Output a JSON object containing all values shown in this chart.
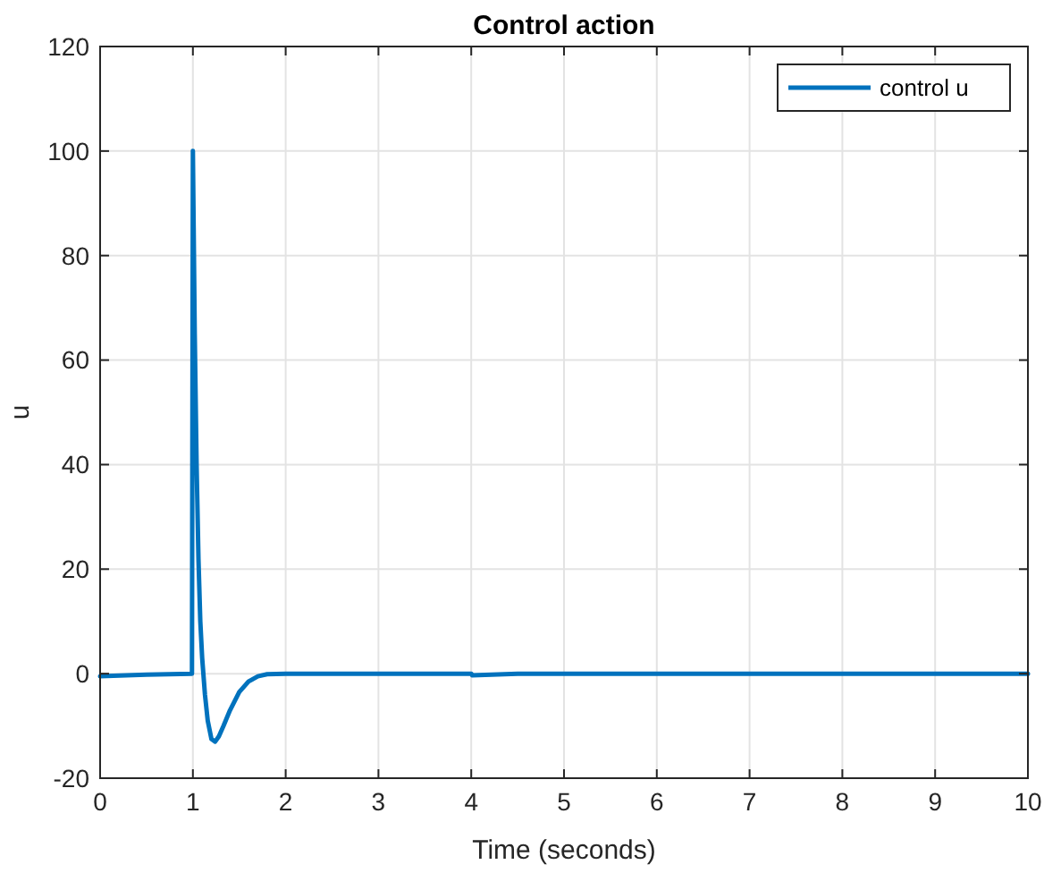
{
  "chart_data": {
    "type": "line",
    "title": "Control action",
    "xlabel": "Time (seconds)",
    "ylabel": "u",
    "xlim": [
      0,
      10
    ],
    "ylim": [
      -20,
      120
    ],
    "xticks": [
      0,
      1,
      2,
      3,
      4,
      5,
      6,
      7,
      8,
      9,
      10
    ],
    "yticks": [
      -20,
      0,
      20,
      40,
      60,
      80,
      100,
      120
    ],
    "grid": true,
    "legend": "top right",
    "marker": "none",
    "line_style": "solid",
    "series": [
      {
        "name": "control u",
        "color": "#0072bd",
        "x": [
          0,
          0.5,
          0.99,
          1.0,
          1.02,
          1.04,
          1.06,
          1.08,
          1.1,
          1.13,
          1.16,
          1.2,
          1.24,
          1.28,
          1.33,
          1.4,
          1.5,
          1.6,
          1.7,
          1.8,
          2,
          3,
          4,
          4.01,
          4.5,
          5,
          10
        ],
        "values": [
          -0.5,
          -0.2,
          0,
          100,
          65,
          40,
          22,
          10,
          3,
          -4,
          -9,
          -12.5,
          -13,
          -12,
          -10,
          -7,
          -3.5,
          -1.5,
          -0.5,
          -0.1,
          0,
          0,
          0,
          -0.3,
          0,
          0,
          0
        ]
      }
    ]
  }
}
